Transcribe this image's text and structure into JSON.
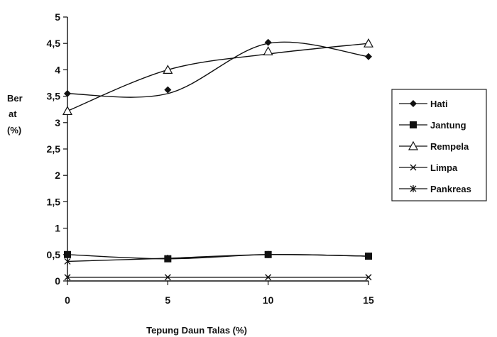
{
  "chart_data": {
    "type": "line",
    "title": "",
    "xlabel": "Tepung Daun Talas (%)",
    "ylabel": [
      "Ber",
      "at",
      "(%)"
    ],
    "x": [
      0,
      5,
      10,
      15
    ],
    "x_ticks": [
      "0",
      "5",
      "10",
      "15"
    ],
    "xlim": [
      0,
      15
    ],
    "y_ticks": [
      "0",
      "0,5",
      "1",
      "1,5",
      "2",
      "2,5",
      "3",
      "3,5",
      "4",
      "4,5",
      "5"
    ],
    "ylim": [
      0,
      5
    ],
    "grid": false,
    "legend_position": "right",
    "series": [
      {
        "name": "Hati",
        "marker": "diamond",
        "values": [
          3.55,
          3.62,
          4.52,
          4.25
        ],
        "trend": [
          3.55,
          3.55,
          4.5,
          4.25
        ]
      },
      {
        "name": "Jantung",
        "marker": "square",
        "values": [
          0.5,
          0.42,
          0.5,
          0.47
        ],
        "trend": null
      },
      {
        "name": "Rempela",
        "marker": "triangle",
        "values": [
          3.22,
          4.0,
          4.35,
          4.5
        ],
        "trend": [
          3.22,
          4.0,
          4.3,
          4.5
        ]
      },
      {
        "name": "Limpa",
        "marker": "x",
        "values": [
          0.07,
          0.07,
          0.07,
          0.07
        ],
        "trend": null
      },
      {
        "name": "Pankreas",
        "marker": "star",
        "values": [
          0.37,
          0.43,
          0.5,
          0.47
        ],
        "trend": null
      }
    ]
  }
}
